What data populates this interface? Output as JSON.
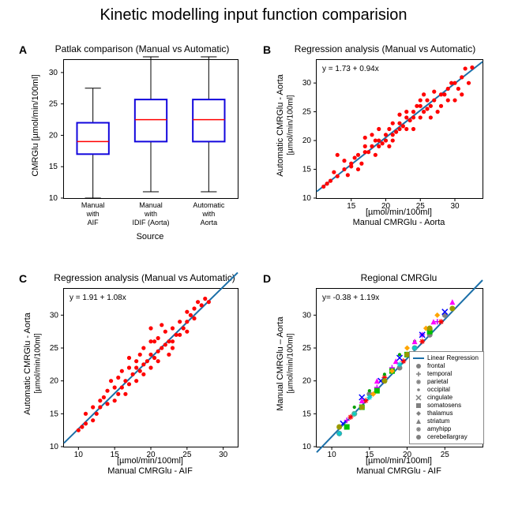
{
  "main_title": "Kinetic modelling input function comparision",
  "panels": {
    "A": {
      "letter": "A",
      "title": "Patlak comparison (Manual vs Automatic)",
      "type": "boxplot",
      "ylabel": "CMRGlu [µmol/min/100ml]",
      "xlabel": "Source",
      "ylim": [
        10,
        32
      ],
      "yticks": [
        10,
        15,
        20,
        25,
        30
      ],
      "categories": [
        "Manual\nwith\nAIF",
        "Manual\nwith\nIDIF (Aorta)",
        "Automatic\nwith\nAorta"
      ],
      "boxes": [
        {
          "min": 10.0,
          "q1": 17.0,
          "median": 19.0,
          "q3": 22.0,
          "max": 27.5
        },
        {
          "min": 11.0,
          "q1": 19.0,
          "median": 22.5,
          "q3": 25.7,
          "max": 32.5
        },
        {
          "min": 11.0,
          "q1": 19.0,
          "median": 22.5,
          "q3": 25.7,
          "max": 32.5
        }
      ],
      "box_color": "#1206dd",
      "median_color": "#ff0000",
      "whisker_color": "#000000",
      "box_linewidth": 2
    },
    "B": {
      "letter": "B",
      "title": "Regression analysis (Manual vs Automatic)",
      "type": "scatter",
      "equation": "y = 1.73 + 0.94x",
      "xlabel": "[µmol/min/100ml]",
      "xlabel2": "Manual CMRGlu - Aorta",
      "ylabel": "Automatic CMRGlu - Aorta",
      "ylabel2": "[µmol/min/100ml]",
      "xlim": [
        10,
        34
      ],
      "ylim": [
        10,
        34
      ],
      "xticks": [
        15,
        20,
        25,
        30
      ],
      "yticks": [
        10,
        15,
        20,
        25,
        30
      ],
      "line_color": "#1b6fa8",
      "point_color": "#ff0000",
      "points": [
        [
          11,
          12
        ],
        [
          11.5,
          12.5
        ],
        [
          12,
          13
        ],
        [
          12.5,
          14.5
        ],
        [
          13,
          13.8
        ],
        [
          13,
          17.5
        ],
        [
          14,
          15
        ],
        [
          14,
          16.5
        ],
        [
          14.5,
          14
        ],
        [
          15,
          16
        ],
        [
          15,
          15.5
        ],
        [
          15.5,
          17
        ],
        [
          16,
          15
        ],
        [
          16,
          17.5
        ],
        [
          16.5,
          16
        ],
        [
          17,
          18
        ],
        [
          17,
          20.5
        ],
        [
          17,
          19
        ],
        [
          17.5,
          18
        ],
        [
          18,
          19
        ],
        [
          18,
          21
        ],
        [
          18.5,
          17.5
        ],
        [
          18.5,
          20
        ],
        [
          19,
          19
        ],
        [
          19,
          20
        ],
        [
          19,
          22
        ],
        [
          19.5,
          19.5
        ],
        [
          20,
          20
        ],
        [
          20,
          21
        ],
        [
          20.5,
          19
        ],
        [
          20.5,
          22
        ],
        [
          21,
          21
        ],
        [
          21,
          23
        ],
        [
          21,
          20
        ],
        [
          21.5,
          21.5
        ],
        [
          22,
          22
        ],
        [
          22,
          24.5
        ],
        [
          22,
          23
        ],
        [
          22.5,
          22.5
        ],
        [
          23,
          22
        ],
        [
          23,
          24
        ],
        [
          23,
          25
        ],
        [
          23.5,
          23.5
        ],
        [
          24,
          25
        ],
        [
          24,
          24
        ],
        [
          24,
          22
        ],
        [
          24.5,
          26
        ],
        [
          25,
          24
        ],
        [
          25,
          26
        ],
        [
          25,
          27
        ],
        [
          25.5,
          25
        ],
        [
          25.5,
          28
        ],
        [
          26,
          25.5
        ],
        [
          26,
          27
        ],
        [
          26.5,
          24
        ],
        [
          26.5,
          26
        ],
        [
          27,
          27
        ],
        [
          27,
          28.5
        ],
        [
          27.5,
          25
        ],
        [
          28,
          28
        ],
        [
          28,
          26
        ],
        [
          28.5,
          28
        ],
        [
          29,
          27
        ],
        [
          29,
          29
        ],
        [
          29.5,
          30
        ],
        [
          30,
          27
        ],
        [
          30,
          30
        ],
        [
          30.5,
          29
        ],
        [
          31,
          31
        ],
        [
          31,
          28
        ],
        [
          31.5,
          32.5
        ],
        [
          32,
          30
        ],
        [
          32.5,
          32.7
        ]
      ]
    },
    "C": {
      "letter": "C",
      "title": "Regression analysis (Manual vs Automatic)",
      "type": "scatter",
      "equation": "y = 1.91 + 1.08x",
      "xlabel": "[µmol/min/100ml]",
      "xlabel2": "Manual CMRGlu - AIF",
      "ylabel": "Automatic CMRGlu - Aorta",
      "ylabel2": "[µmol/min/100ml]",
      "xlim": [
        8,
        32
      ],
      "ylim": [
        10,
        34
      ],
      "xticks": [
        10,
        15,
        20,
        25,
        30
      ],
      "yticks": [
        10,
        15,
        20,
        25,
        30
      ],
      "line_color": "#1b6fa8",
      "point_color": "#ff0000",
      "points": [
        [
          10,
          12.5
        ],
        [
          10.5,
          13
        ],
        [
          11,
          13.5
        ],
        [
          11,
          15
        ],
        [
          12,
          14
        ],
        [
          12,
          16
        ],
        [
          12.5,
          15
        ],
        [
          13,
          17
        ],
        [
          13,
          16
        ],
        [
          13.5,
          17.5
        ],
        [
          14,
          18.5
        ],
        [
          14,
          16.5
        ],
        [
          14.5,
          20
        ],
        [
          15,
          17
        ],
        [
          15,
          19
        ],
        [
          15.5,
          18
        ],
        [
          15.5,
          20.5
        ],
        [
          16,
          19
        ],
        [
          16,
          21.5
        ],
        [
          16.5,
          18
        ],
        [
          16.5,
          20
        ],
        [
          17,
          19.5
        ],
        [
          17,
          22
        ],
        [
          17,
          23.5
        ],
        [
          17.5,
          21
        ],
        [
          18,
          20
        ],
        [
          18,
          22
        ],
        [
          18,
          23
        ],
        [
          18.5,
          21.5
        ],
        [
          18.5,
          24
        ],
        [
          19,
          21
        ],
        [
          19,
          22.5
        ],
        [
          19,
          25
        ],
        [
          19.5,
          23
        ],
        [
          20,
          22
        ],
        [
          20,
          24
        ],
        [
          20,
          26
        ],
        [
          20,
          28
        ],
        [
          20.5,
          23.5
        ],
        [
          20.5,
          26
        ],
        [
          21,
          24.5
        ],
        [
          21,
          26.5
        ],
        [
          21,
          23
        ],
        [
          21.5,
          28.5
        ],
        [
          21.5,
          25
        ],
        [
          22,
          25.5
        ],
        [
          22,
          27.5
        ],
        [
          22.5,
          24
        ],
        [
          22.5,
          26
        ],
        [
          23,
          28
        ],
        [
          23,
          26
        ],
        [
          23,
          25
        ],
        [
          23.5,
          27
        ],
        [
          24,
          29
        ],
        [
          24,
          27
        ],
        [
          24.5,
          28
        ],
        [
          25,
          30.5
        ],
        [
          25,
          29
        ],
        [
          25,
          27.5
        ],
        [
          25.5,
          30
        ],
        [
          26,
          31
        ],
        [
          26,
          29.5
        ],
        [
          26.5,
          32
        ],
        [
          27,
          31.5
        ],
        [
          27.5,
          32.5
        ],
        [
          28,
          32
        ]
      ]
    },
    "D": {
      "letter": "D",
      "title": "Regional CMRGlu",
      "type": "scatter-multi",
      "equation": "y= -0.38 + 1.19x",
      "xlabel": "[µmol/min/100ml]",
      "xlabel2": "Manual CMRGlu - AIF",
      "ylabel": "Manual CMRGlu – Aorta",
      "ylabel2": "[µmol/min/100ml]",
      "xlim": [
        8,
        30
      ],
      "ylim": [
        10,
        34
      ],
      "xticks": [
        10,
        15,
        20,
        25
      ],
      "yticks": [
        10,
        15,
        20,
        25,
        30
      ],
      "line_color": "#1b6fa8",
      "line_label": "Linear Regression",
      "groups": [
        {
          "name": "frontal",
          "marker": "circle",
          "color": "#808080",
          "points": [
            [
              11,
              12
            ],
            [
              13,
              15
            ],
            [
              15,
              18
            ],
            [
              17,
              20
            ],
            [
              19,
              22
            ],
            [
              21,
              25
            ],
            [
              23,
              27
            ],
            [
              25,
              30
            ]
          ]
        },
        {
          "name": "temporal",
          "marker": "plus",
          "color": "#d000ff",
          "points": [
            [
              12,
              14
            ],
            [
              14,
              16
            ],
            [
              16,
              19
            ],
            [
              18,
              22
            ],
            [
              20,
              24
            ],
            [
              22,
              27
            ],
            [
              24,
              29
            ]
          ]
        },
        {
          "name": "parietal",
          "marker": "star",
          "color": "#ff0000",
          "points": [
            [
              12.5,
              14.5
            ],
            [
              14.5,
              17
            ],
            [
              17,
              20.5
            ],
            [
              19.5,
              23
            ],
            [
              22,
              26
            ],
            [
              24.5,
              29
            ]
          ]
        },
        {
          "name": "occipital",
          "marker": "dot",
          "color": "#00a000",
          "points": [
            [
              13,
              16
            ],
            [
              15,
              18.5
            ],
            [
              17,
              21
            ],
            [
              19,
              24
            ],
            [
              21,
              26
            ],
            [
              23,
              28
            ],
            [
              26,
              31
            ]
          ]
        },
        {
          "name": "cingulate",
          "marker": "cross",
          "color": "#0000ff",
          "points": [
            [
              11.5,
              13.5
            ],
            [
              14,
              17.5
            ],
            [
              16.5,
              20
            ],
            [
              19,
              23.5
            ],
            [
              22,
              27
            ],
            [
              25,
              30.5
            ]
          ]
        },
        {
          "name": "somatosens",
          "marker": "square",
          "color": "#00c000",
          "points": [
            [
              12,
              13
            ],
            [
              14,
              16
            ],
            [
              16,
              18.5
            ],
            [
              18,
              21.5
            ],
            [
              20,
              24
            ],
            [
              23,
              27.5
            ]
          ]
        },
        {
          "name": "thalamus",
          "marker": "diamond",
          "color": "#ffa500",
          "points": [
            [
              13,
              15
            ],
            [
              15.5,
              18
            ],
            [
              18,
              21.5
            ],
            [
              20,
              25
            ],
            [
              22.5,
              28
            ],
            [
              24,
              30
            ]
          ]
        },
        {
          "name": "striatum",
          "marker": "triangle",
          "color": "#ff00ff",
          "points": [
            [
              14,
              17
            ],
            [
              16,
              20
            ],
            [
              18.5,
              23
            ],
            [
              21,
              26
            ],
            [
              23.5,
              29
            ],
            [
              26,
              32
            ]
          ]
        },
        {
          "name": "amyhipp",
          "marker": "star",
          "color": "#00ced1",
          "points": [
            [
              11,
              12
            ],
            [
              13,
              15
            ],
            [
              15,
              17.5
            ],
            [
              17,
              20
            ],
            [
              19,
              22.5
            ],
            [
              21,
              25
            ]
          ]
        },
        {
          "name": "cerebellargray",
          "marker": "circle",
          "color": "#999900",
          "points": [
            [
              11,
              13
            ],
            [
              14,
              16
            ],
            [
              17,
              20
            ],
            [
              20,
              24
            ],
            [
              23,
              28
            ],
            [
              26,
              31
            ]
          ]
        }
      ]
    }
  }
}
